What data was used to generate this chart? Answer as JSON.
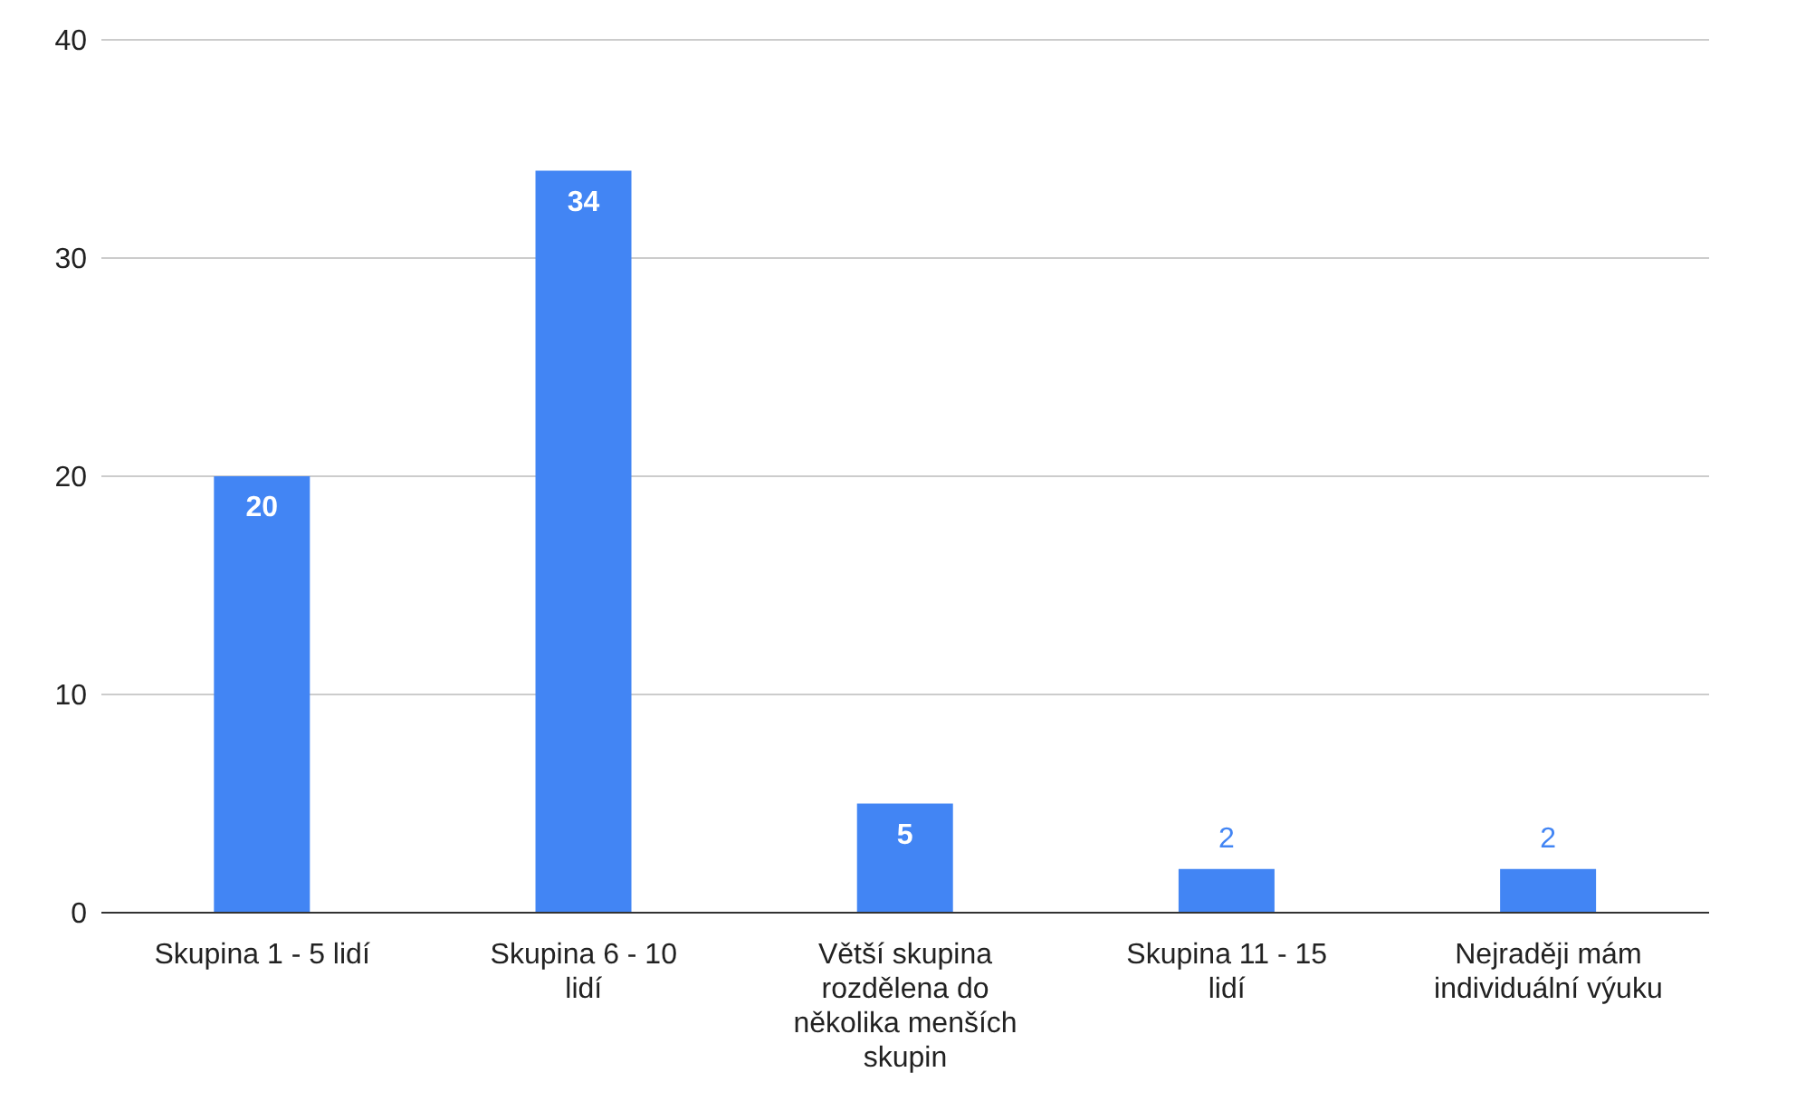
{
  "chart_data": {
    "type": "bar",
    "categories": [
      "Skupina 1 - 5 lidí",
      "Skupina 6 - 10 lidí",
      "Větší skupina rozdělena do několika menších skupin",
      "Skupina 11 - 15 lidí",
      "Nejraději mám individuální výuku"
    ],
    "values": [
      20,
      34,
      5,
      2,
      2
    ],
    "color": "#4285f4",
    "ylim": [
      0,
      40
    ],
    "yticks": [
      0,
      10,
      20,
      30,
      40
    ],
    "grid": "y",
    "data_labels": true
  }
}
